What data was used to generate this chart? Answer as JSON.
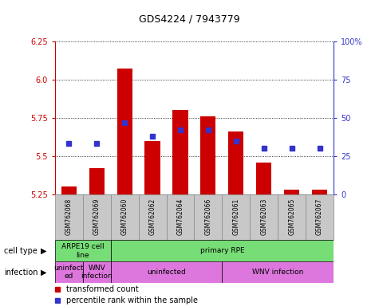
{
  "title": "GDS4224 / 7943779",
  "samples": [
    "GSM762068",
    "GSM762069",
    "GSM762060",
    "GSM762062",
    "GSM762064",
    "GSM762066",
    "GSM762061",
    "GSM762063",
    "GSM762065",
    "GSM762067"
  ],
  "transformed_count": [
    5.3,
    5.42,
    6.07,
    5.6,
    5.8,
    5.76,
    5.66,
    5.46,
    5.28,
    5.28
  ],
  "percentile_rank": [
    33,
    33,
    47,
    38,
    42,
    42,
    35,
    30,
    30,
    30
  ],
  "ymin": 5.25,
  "ymax": 6.25,
  "yticks": [
    5.25,
    5.5,
    5.75,
    6.0,
    6.25
  ],
  "right_yticks": [
    0,
    25,
    50,
    75,
    100
  ],
  "right_yticklabels": [
    "0",
    "25",
    "50",
    "75",
    "100%"
  ],
  "bar_color": "#cc0000",
  "dot_color": "#3333cc",
  "grid_color": "#000000",
  "plot_bg": "#ffffff",
  "sample_bg": "#c8c8c8",
  "tick_color_left": "#cc0000",
  "tick_color_right": "#3333cc",
  "cell_type_data": [
    {
      "start": 0,
      "end": 2,
      "label": "ARPE19 cell\nline",
      "color": "#77dd77"
    },
    {
      "start": 2,
      "end": 10,
      "label": "primary RPE",
      "color": "#77dd77"
    }
  ],
  "infection_data": [
    {
      "start": 0,
      "end": 1,
      "label": "uninfect\ned",
      "color": "#dd77dd"
    },
    {
      "start": 1,
      "end": 2,
      "label": "WNV\ninfection",
      "color": "#dd77dd"
    },
    {
      "start": 2,
      "end": 6,
      "label": "uninfected",
      "color": "#dd77dd"
    },
    {
      "start": 6,
      "end": 10,
      "label": "WNV infection",
      "color": "#dd77dd"
    }
  ],
  "legend_items": [
    {
      "color": "#cc0000",
      "label": "transformed count"
    },
    {
      "color": "#3333cc",
      "label": "percentile rank within the sample"
    }
  ]
}
